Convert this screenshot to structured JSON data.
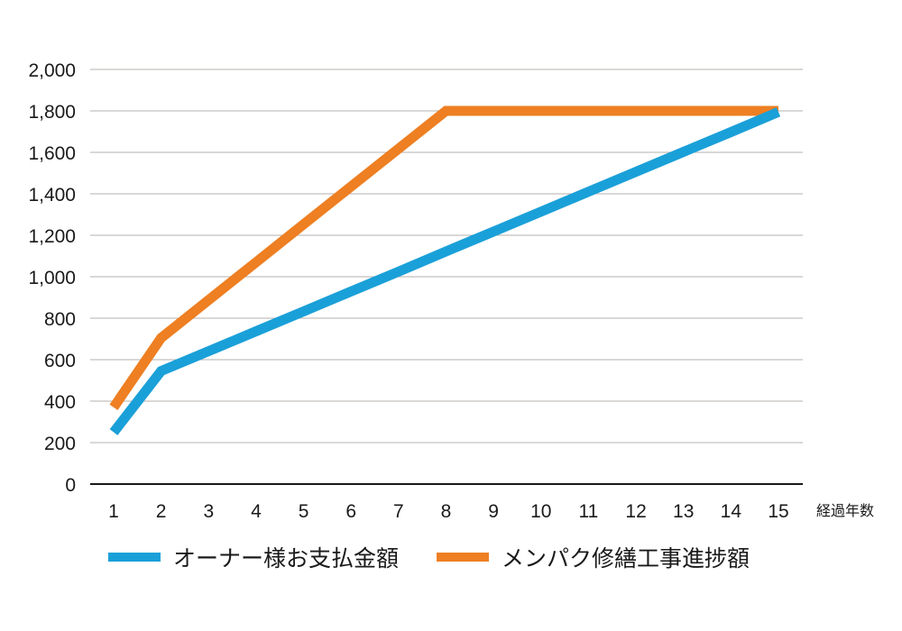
{
  "chart_data": {
    "type": "line",
    "title": "",
    "xlabel": "経過年数",
    "ylabel": "",
    "x": [
      1,
      2,
      3,
      4,
      5,
      6,
      7,
      8,
      9,
      10,
      11,
      12,
      13,
      14,
      15
    ],
    "ylim": [
      0,
      2000
    ],
    "yticks": [
      0,
      200,
      400,
      600,
      800,
      1000,
      1200,
      1400,
      1600,
      1800,
      2000
    ],
    "ytick_labels": [
      "0",
      "200",
      "400",
      "600",
      "800",
      "1,000",
      "1,200",
      "1,400",
      "1,600",
      "1,800",
      "2,000"
    ],
    "grid": true,
    "legend_position": "bottom",
    "series": [
      {
        "name": "オーナー様お支払金額",
        "color": "#1aa0d8",
        "values": [
          250,
          545,
          641,
          737,
          833,
          929,
          1025,
          1122,
          1218,
          1314,
          1410,
          1506,
          1602,
          1698,
          1795
        ]
      },
      {
        "name": "メンパク修繕工事進捗額",
        "color": "#ee7f22",
        "values": [
          370,
          705,
          888,
          1070,
          1253,
          1435,
          1618,
          1800,
          1800,
          1800,
          1800,
          1800,
          1800,
          1800,
          1800
        ]
      }
    ]
  },
  "axis": {
    "x_title": "経過年数"
  },
  "legend": {
    "items": [
      {
        "label": "オーナー様お支払金額",
        "color": "#1aa0d8"
      },
      {
        "label": "メンパク修繕工事進捗額",
        "color": "#ee7f22"
      }
    ]
  }
}
